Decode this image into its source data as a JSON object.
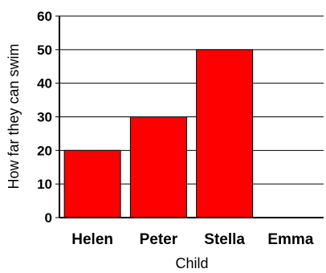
{
  "chart_data": {
    "type": "bar",
    "categories": [
      "Helen",
      "Peter",
      "Stella",
      "Emma"
    ],
    "values": [
      20,
      30,
      50,
      0
    ],
    "xlabel": "Child",
    "ylabel": "How far they can swim",
    "ylim": [
      0,
      60
    ],
    "yticks": [
      0,
      10,
      20,
      30,
      40,
      50,
      60
    ],
    "grid": true,
    "bar_color": "#ff0000"
  }
}
